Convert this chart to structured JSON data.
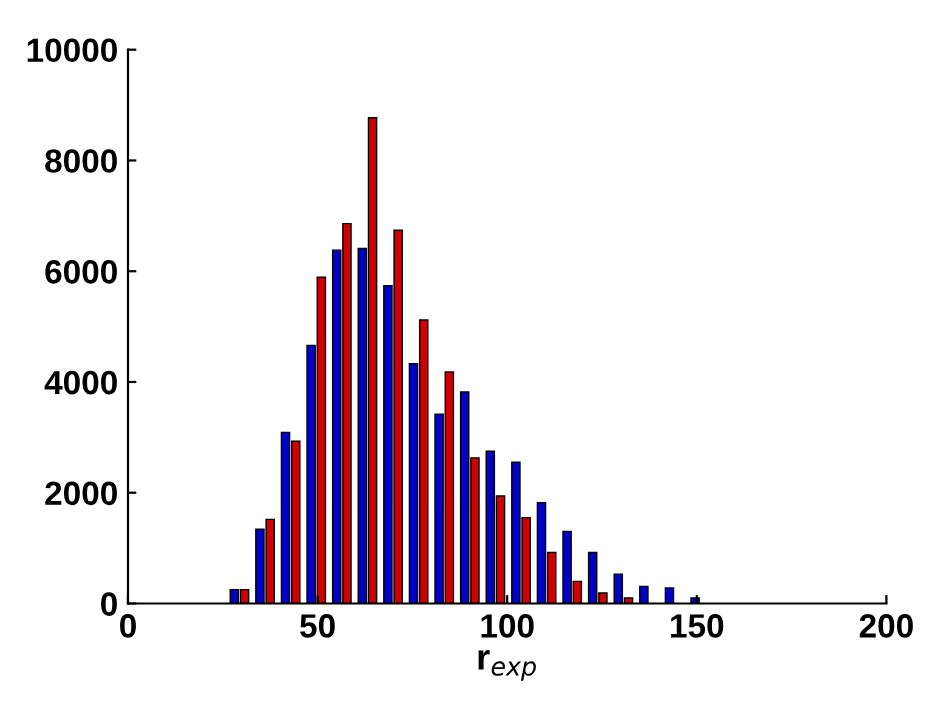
{
  "chart_data": {
    "type": "histogram",
    "xlabel": "r$_{exp}$",
    "bins": [
      25.75,
      32.5,
      39.25,
      46,
      52.75,
      59.5,
      66.25,
      73,
      79.75,
      86.5,
      93.25,
      100,
      106.75,
      113.5,
      120.25,
      127,
      133.75,
      140.5,
      147.25,
      154
    ],
    "series": [
      {
        "color": "#0000c8",
        "values": [
          250,
          1340,
          3090,
          4660,
          6380,
          6410,
          5740,
          4330,
          3420,
          3820,
          2750,
          2550,
          1820,
          1300,
          920,
          530,
          310,
          280,
          100
        ]
      },
      {
        "color": "#d00000",
        "values": [
          250,
          1520,
          2930,
          5890,
          6860,
          8770,
          6740,
          5120,
          4180,
          2630,
          1940,
          1550,
          920,
          400,
          190,
          100,
          null,
          null,
          null
        ]
      }
    ],
    "xlim": [
      0,
      200
    ],
    "xticks": [
      0,
      50,
      100,
      150,
      200
    ],
    "ylim": [
      0,
      10000
    ],
    "yticks": [
      0,
      2000,
      4000,
      6000,
      8000,
      10000
    ],
    "grid": false,
    "legend": false
  }
}
